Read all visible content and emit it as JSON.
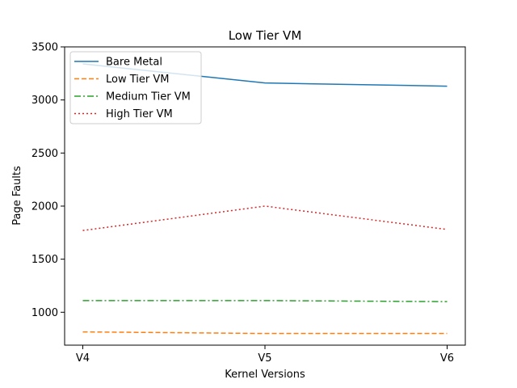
{
  "chart_data": {
    "type": "line",
    "title": "Low Tier VM",
    "xlabel": "Kernel Versions",
    "ylabel": "Page Faults",
    "categories": [
      "V4",
      "V5",
      "V6"
    ],
    "ylim": [
      690,
      3500
    ],
    "yticks": [
      1000,
      1500,
      2000,
      2500,
      3000,
      3500
    ],
    "grid": false,
    "legend_position": "top-left",
    "series": [
      {
        "name": "Bare Metal",
        "values": [
          3340,
          3160,
          3130
        ],
        "color": "#1f77b4",
        "style": "solid"
      },
      {
        "name": "Low Tier VM",
        "values": [
          815,
          800,
          800
        ],
        "color": "#ff7f0e",
        "style": "dashed"
      },
      {
        "name": "Medium Tier VM",
        "values": [
          1110,
          1110,
          1100
        ],
        "color": "#2ca02c",
        "style": "dashdot"
      },
      {
        "name": "High Tier VM",
        "values": [
          1770,
          2000,
          1780
        ],
        "color": "#d62728",
        "style": "dotted"
      }
    ]
  }
}
